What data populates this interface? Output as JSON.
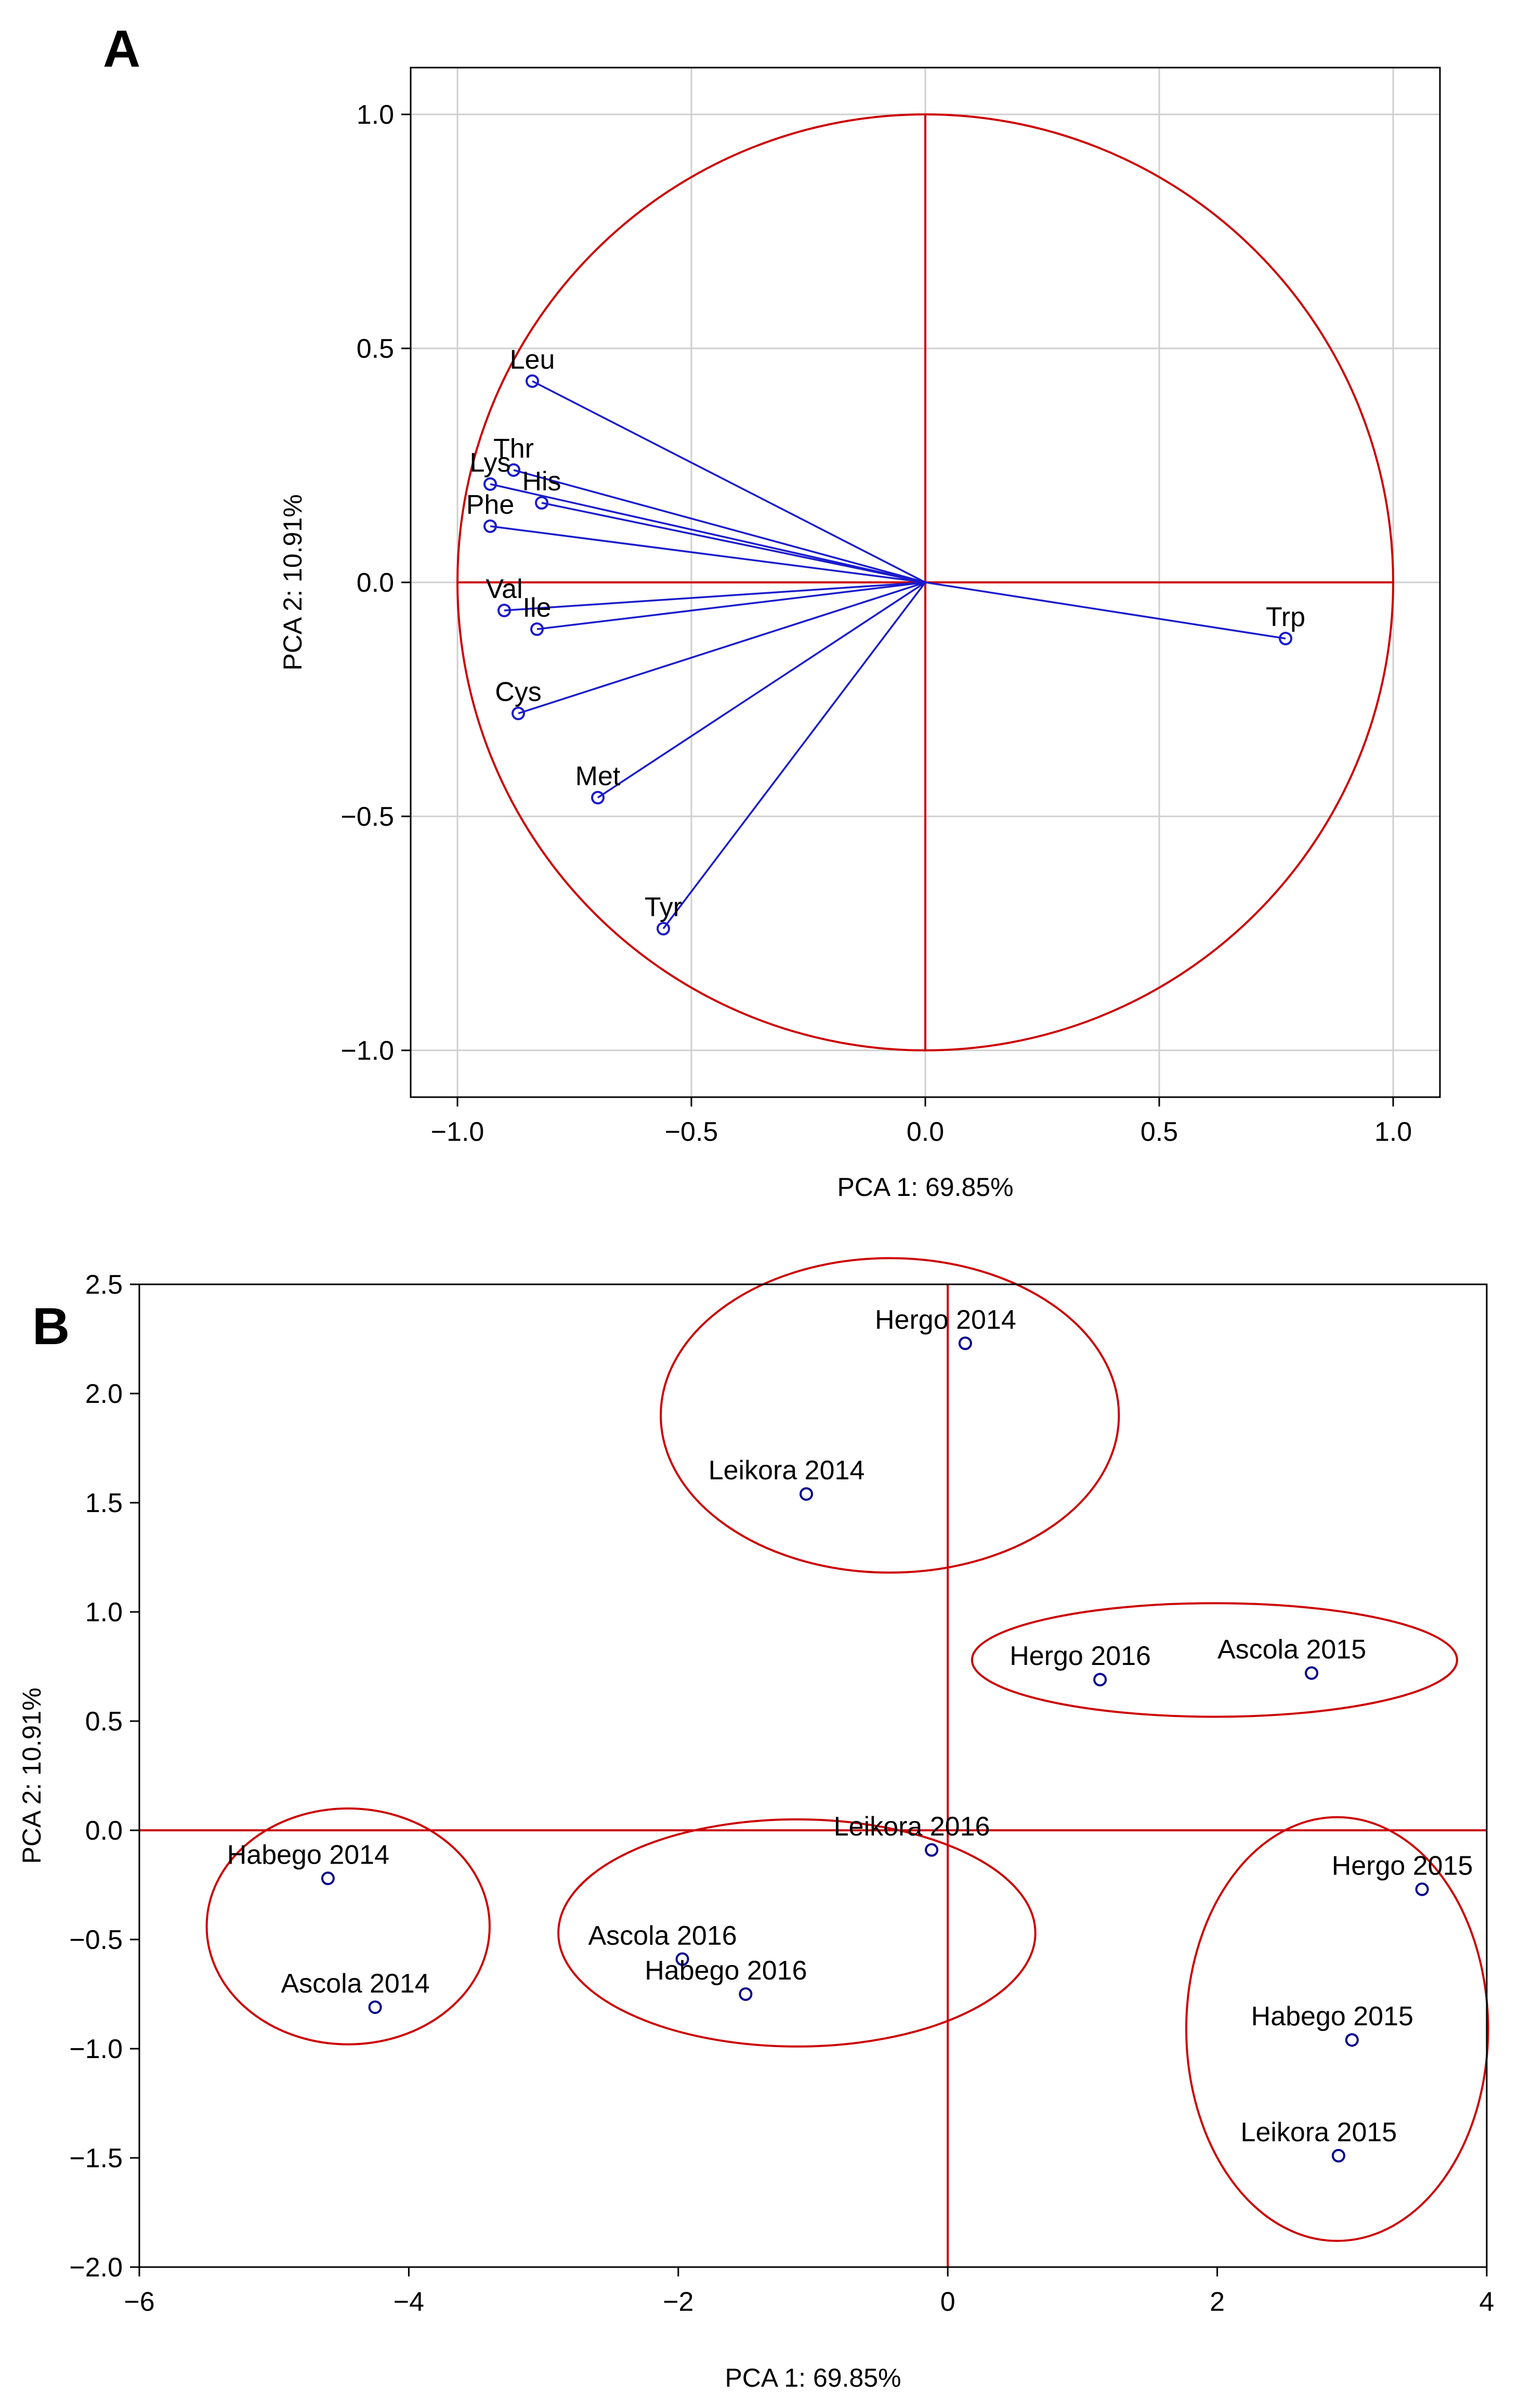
{
  "chart_data": [
    {
      "panel": "A",
      "type": "scatter",
      "subtype": "pca-loadings",
      "xlabel": "PCA 1: 69.85%",
      "ylabel": "PCA 2: 10.91%",
      "xlim": [
        -1.1,
        1.1
      ],
      "ylim": [
        -1.1,
        1.1
      ],
      "xticks": [
        -1.0,
        -0.5,
        0.0,
        0.5,
        1.0
      ],
      "yticks": [
        -1.0,
        -0.5,
        0.0,
        0.5,
        1.0
      ],
      "xtick_labels": [
        "−1.0",
        "−0.5",
        "0.0",
        "0.5",
        "1.0"
      ],
      "ytick_labels": [
        "−1.0",
        "−0.5",
        "0.0",
        "0.5",
        "1.0"
      ],
      "grid": true,
      "unit_circle": true,
      "points": [
        {
          "label": "Leu",
          "x": -0.84,
          "y": 0.43
        },
        {
          "label": "Thr",
          "x": -0.88,
          "y": 0.24
        },
        {
          "label": "Lys",
          "x": -0.93,
          "y": 0.21
        },
        {
          "label": "His",
          "x": -0.82,
          "y": 0.17
        },
        {
          "label": "Phe",
          "x": -0.93,
          "y": 0.12
        },
        {
          "label": "Val",
          "x": -0.9,
          "y": -0.06
        },
        {
          "label": "Ile",
          "x": -0.83,
          "y": -0.1
        },
        {
          "label": "Cys",
          "x": -0.87,
          "y": -0.28
        },
        {
          "label": "Met",
          "x": -0.7,
          "y": -0.46
        },
        {
          "label": "Tyr",
          "x": -0.56,
          "y": -0.74
        },
        {
          "label": "Trp",
          "x": 0.77,
          "y": -0.12
        }
      ]
    },
    {
      "panel": "B",
      "type": "scatter",
      "subtype": "pca-scores",
      "xlabel": "PCA 1: 69.85%",
      "ylabel": "PCA 2: 10.91%",
      "xlim": [
        -6,
        4
      ],
      "ylim": [
        -2.0,
        2.5
      ],
      "xticks": [
        -6,
        -4,
        -2,
        0,
        2,
        4
      ],
      "yticks": [
        -2.0,
        -1.5,
        -1.0,
        -0.5,
        0.0,
        0.5,
        1.0,
        1.5,
        2.0,
        2.5
      ],
      "xtick_labels": [
        "−6",
        "−4",
        "−2",
        "0",
        "2",
        "4"
      ],
      "ytick_labels": [
        "−2.0",
        "−1.5",
        "−1.0",
        "−0.5",
        "0.0",
        "0.5",
        "1.0",
        "1.5",
        "2.0",
        "2.5"
      ],
      "grid": false,
      "points": [
        {
          "label": "Hergo 2014",
          "x": 0.13,
          "y": 2.23
        },
        {
          "label": "Leikora 2014",
          "x": -1.05,
          "y": 1.54
        },
        {
          "label": "Hergo 2016",
          "x": 1.13,
          "y": 0.69
        },
        {
          "label": "Ascola 2015",
          "x": 2.7,
          "y": 0.72
        },
        {
          "label": "Leikora 2016",
          "x": -0.12,
          "y": -0.09
        },
        {
          "label": "Habego 2014",
          "x": -4.6,
          "y": -0.22
        },
        {
          "label": "Ascola 2014",
          "x": -4.25,
          "y": -0.81
        },
        {
          "label": "Ascola 2016",
          "x": -1.97,
          "y": -0.59
        },
        {
          "label": "Habego 2016",
          "x": -1.5,
          "y": -0.75
        },
        {
          "label": "Hergo 2015",
          "x": 3.52,
          "y": -0.27
        },
        {
          "label": "Habego 2015",
          "x": 3.0,
          "y": -0.96
        },
        {
          "label": "Leikora 2015",
          "x": 2.9,
          "y": -1.49
        }
      ],
      "groups": [
        {
          "name": "group-top",
          "center": [
            -0.43,
            1.9
          ],
          "radii": [
            1.7,
            0.72
          ]
        },
        {
          "name": "group-right-middle",
          "center": [
            1.98,
            0.78
          ],
          "radii": [
            1.8,
            0.26
          ]
        },
        {
          "name": "group-left",
          "center": [
            -4.45,
            -0.44
          ],
          "radii": [
            1.05,
            0.54
          ]
        },
        {
          "name": "group-center",
          "center": [
            -1.12,
            -0.47
          ],
          "radii": [
            1.77,
            0.52
          ]
        },
        {
          "name": "group-right-bottom",
          "center": [
            2.89,
            -0.91
          ],
          "radii": [
            1.12,
            0.97
          ]
        }
      ]
    }
  ]
}
